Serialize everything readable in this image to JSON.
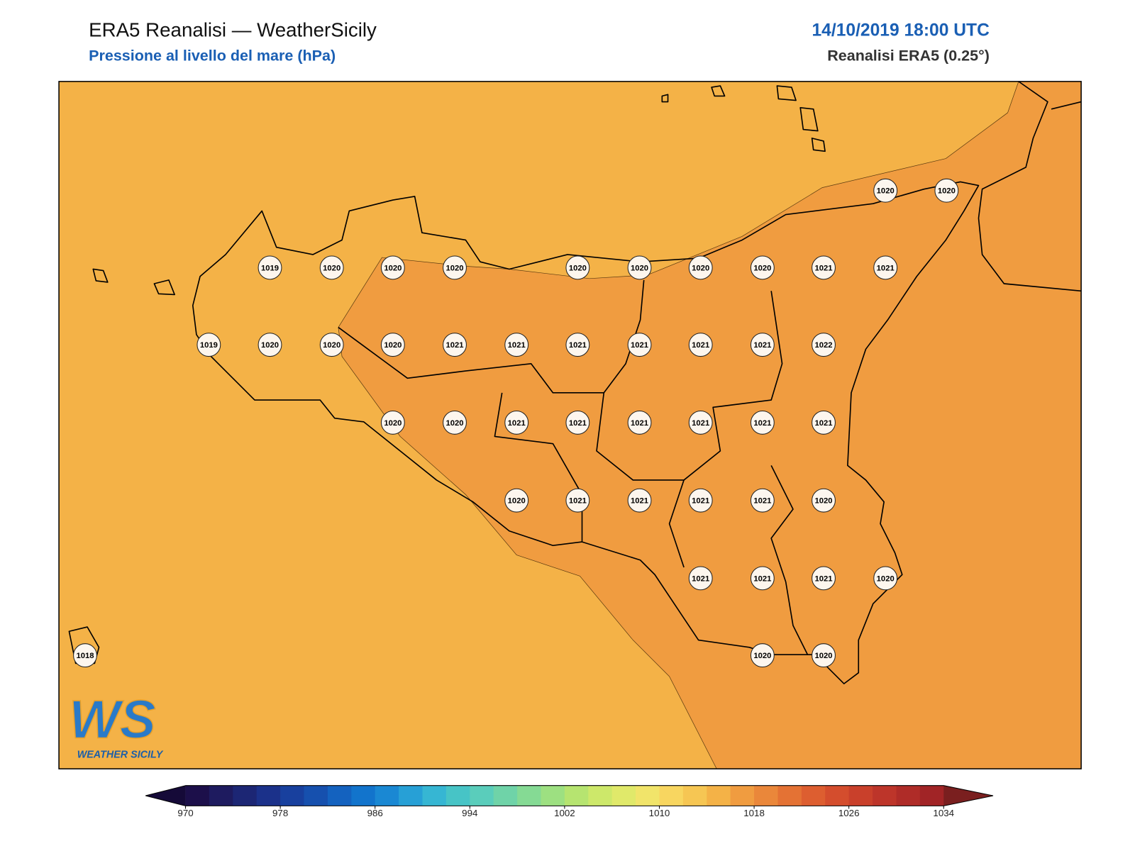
{
  "header": {
    "title": "ERA5 Reanalisi — WeatherSicily",
    "subtitle": "Pressione al livello del mare (hPa)",
    "datetime": "14/10/2019 18:00 UTC",
    "source": "Reanalisi ERA5 (0.25°)"
  },
  "map": {
    "stations": [
      1020,
      1020,
      1019,
      1020,
      1020,
      1020,
      1020,
      1020,
      1020,
      1020,
      1021,
      1021,
      1019,
      1020,
      1020,
      1020,
      1021,
      1021,
      1021,
      1021,
      1021,
      1021,
      1022,
      1020,
      1020,
      1021,
      1021,
      1021,
      1021,
      1021,
      1021,
      1020,
      1021,
      1021,
      1021,
      1021,
      1020,
      1021,
      1021,
      1021,
      1020,
      1020,
      1020,
      1018
    ]
  },
  "colorbar": {
    "lim": [
      970,
      1034
    ],
    "ticks": [
      970,
      978,
      986,
      994,
      1002,
      1010,
      1018,
      1026,
      1034
    ],
    "colors": [
      "#1c0f4a",
      "#1e1b5f",
      "#1c2674",
      "#1b318a",
      "#18409e",
      "#1650ae",
      "#1462bf",
      "#1274cc",
      "#1a88d3",
      "#27a0d6",
      "#36b6d3",
      "#47c4c6",
      "#5acdbb",
      "#6fd3a8",
      "#85da94",
      "#9de081",
      "#b6e470",
      "#cde86a",
      "#e0e96a",
      "#f1e46a",
      "#f8d660",
      "#f6c653",
      "#f4b247",
      "#f09c40",
      "#ea873a",
      "#e47234",
      "#dd5e30",
      "#d44d2d",
      "#c9402b",
      "#bd352a",
      "#af2c28",
      "#a12426"
    ],
    "under_color": "#150a38",
    "over_color": "#7a1f1f"
  },
  "logo": {
    "mark": "WS",
    "name": "WEATHER SICILY"
  }
}
